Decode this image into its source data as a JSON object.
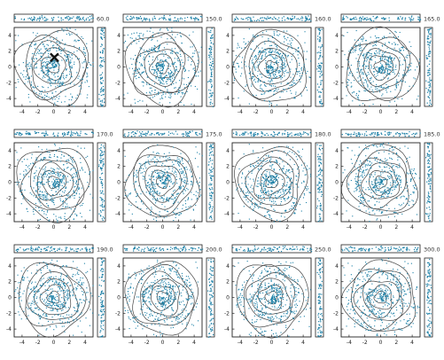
{
  "chart_data": {
    "type": "scatter",
    "layout": "grid 3 rows x 4 columns of scatter+contour panels with top and right marginal distributions",
    "axis_ticks": [
      "-4",
      "-2",
      "0",
      "2",
      "4"
    ],
    "xlim": [
      -5,
      5
    ],
    "ylim": [
      -5,
      5
    ],
    "grid": false,
    "colors": {
      "points": "#1a7fa6",
      "contours": "#444444",
      "axes": "#222222",
      "marker": "#111111"
    },
    "marker": {
      "panel_index": 0,
      "symbol": "x",
      "x": 0.1,
      "y": 1.2
    },
    "panels": [
      {
        "label": "60.0"
      },
      {
        "label": "150.0"
      },
      {
        "label": "160.0"
      },
      {
        "label": "165.0"
      },
      {
        "label": "170.0"
      },
      {
        "label": "175.0"
      },
      {
        "label": "180.0"
      },
      {
        "label": "185.0"
      },
      {
        "label": "190.0"
      },
      {
        "label": "200.0"
      },
      {
        "label": "250.0"
      },
      {
        "label": "300.0"
      }
    ]
  }
}
